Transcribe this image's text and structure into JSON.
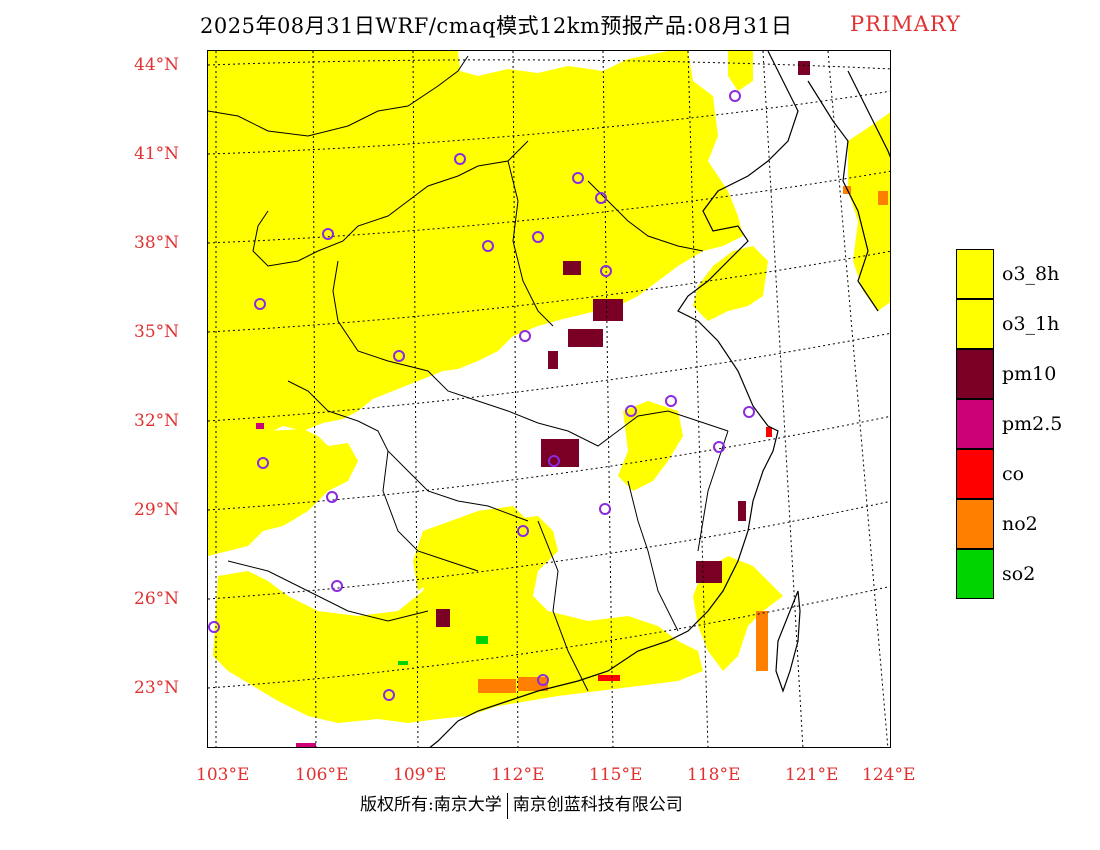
{
  "header": {
    "title": "2025年08月31日WRF/cmaq模式12km预报产品:08月31日",
    "tag": "PRIMARY"
  },
  "map": {
    "lat_labels": [
      "44°N",
      "41°N",
      "38°N",
      "35°N",
      "32°N",
      "29°N",
      "26°N",
      "23°N"
    ],
    "lon_labels": [
      "103°E",
      "106°E",
      "109°E",
      "112°E",
      "115°E",
      "118°E",
      "121°E",
      "124°E"
    ],
    "colors": {
      "o3_8h": "#ffff00",
      "pm10": "#7a0025",
      "pm25": "#cc0077",
      "co": "#ff0000",
      "no2": "#ff7f00",
      "so2": "#00d400",
      "station": "#8a2be2"
    }
  },
  "legend": {
    "items": [
      {
        "label": "o3_8h",
        "color": "#ffff00"
      },
      {
        "label": "o3_1h",
        "color": "#ffff00"
      },
      {
        "label": "pm10",
        "color": "#7a0025"
      },
      {
        "label": "pm2.5",
        "color": "#cc0077"
      },
      {
        "label": "co",
        "color": "#ff0000"
      },
      {
        "label": "no2",
        "color": "#ff7f00"
      },
      {
        "label": "so2",
        "color": "#00d400"
      }
    ]
  },
  "footer": {
    "left": "版权所有:南京大学",
    "right": "南京创蓝科技有限公司"
  }
}
